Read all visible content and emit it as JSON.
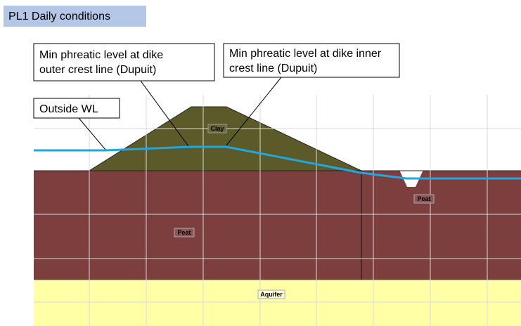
{
  "header": {
    "title": "PL1 Daily conditions"
  },
  "callouts": [
    {
      "lines": [
        "Min phreatic level at dike",
        "outer crest line (Dupuit)"
      ]
    },
    {
      "lines": [
        "Min phreatic level at dike inner",
        "crest line (Dupuit)"
      ]
    },
    {
      "lines": [
        "Outside WL"
      ]
    }
  ],
  "layers": [
    {
      "label": "Clay"
    },
    {
      "label": "Peat"
    },
    {
      "label": "Peat"
    },
    {
      "label": "Aquifer"
    }
  ]
}
